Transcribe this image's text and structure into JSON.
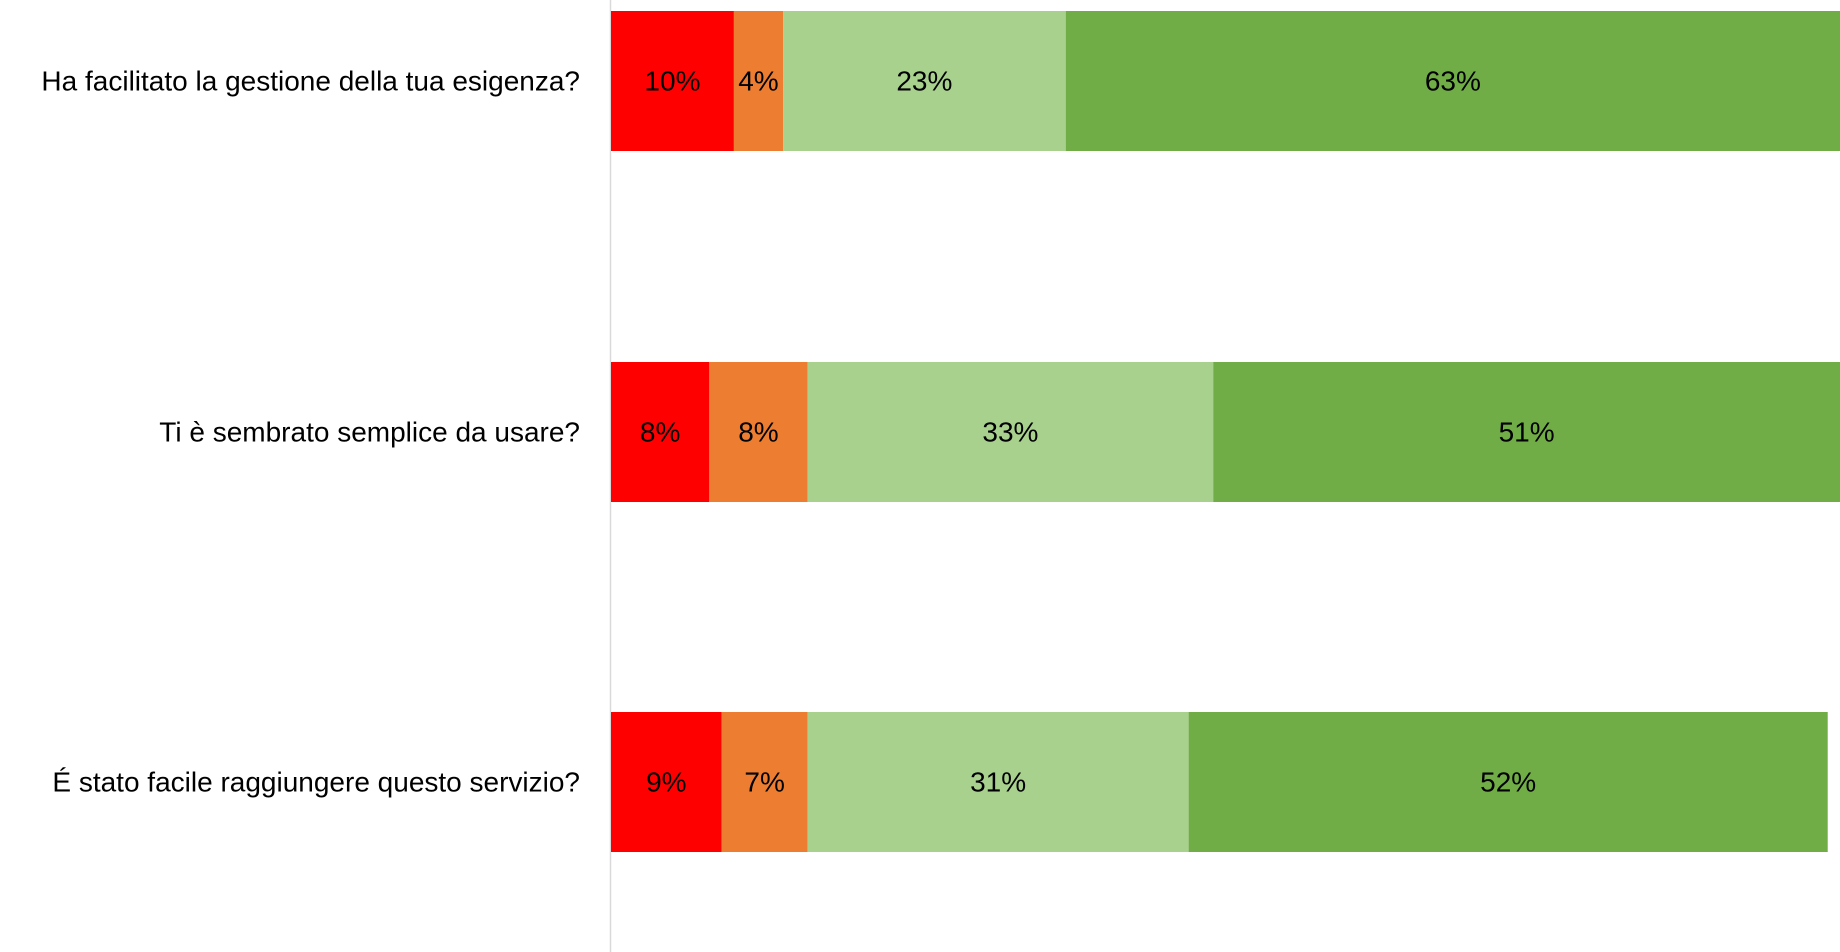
{
  "chart_data": {
    "type": "bar",
    "orientation": "horizontal",
    "stacked": true,
    "categories": [
      "Ha facilitato la gestione della tua esigenza?",
      "Ti è sembrato semplice da usare?",
      "É stato facile raggiungere questo servizio?"
    ],
    "series": [
      {
        "values": [
          10,
          8,
          9
        ],
        "labels": [
          "10%",
          "8%",
          "9%"
        ],
        "color": "#FF0000"
      },
      {
        "values": [
          4,
          8,
          7
        ],
        "labels": [
          "4%",
          "8%",
          "7%"
        ],
        "color": "#ED7D31"
      },
      {
        "values": [
          23,
          33,
          31
        ],
        "labels": [
          "23%",
          "33%",
          "31%"
        ],
        "color": "#A9D18E"
      },
      {
        "values": [
          63,
          51,
          52
        ],
        "labels": [
          "63%",
          "51%",
          "52%"
        ],
        "color": "#70AD47"
      }
    ],
    "xlim": [
      0,
      100
    ],
    "unit": "%",
    "grid": false,
    "axis_color": "#D9D9D9"
  }
}
